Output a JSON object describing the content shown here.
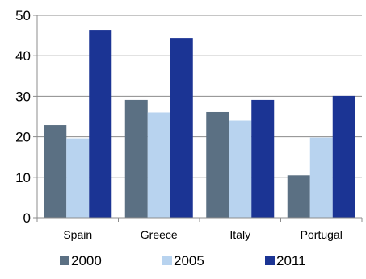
{
  "chart_data": {
    "type": "bar",
    "title": "",
    "xlabel": "",
    "ylabel": "",
    "categories": [
      "Spain",
      "Greece",
      "Italy",
      "Portugal"
    ],
    "series": [
      {
        "name": "2000",
        "values": [
          22.9,
          29.1,
          26.1,
          10.5
        ],
        "color": "#5b7083"
      },
      {
        "name": "2005",
        "values": [
          19.6,
          26.0,
          24.0,
          19.8
        ],
        "color": "#b8d3ef"
      },
      {
        "name": "2011",
        "values": [
          46.4,
          44.4,
          29.1,
          30.1
        ],
        "color": "#1b3494"
      }
    ],
    "ylim": [
      0,
      50
    ],
    "yticks": [
      0,
      10,
      20,
      30,
      40,
      50
    ],
    "ytick_labels": [
      "0",
      "10",
      "20",
      "30",
      "40",
      "50"
    ],
    "grid": true,
    "legend_position": "bottom"
  }
}
